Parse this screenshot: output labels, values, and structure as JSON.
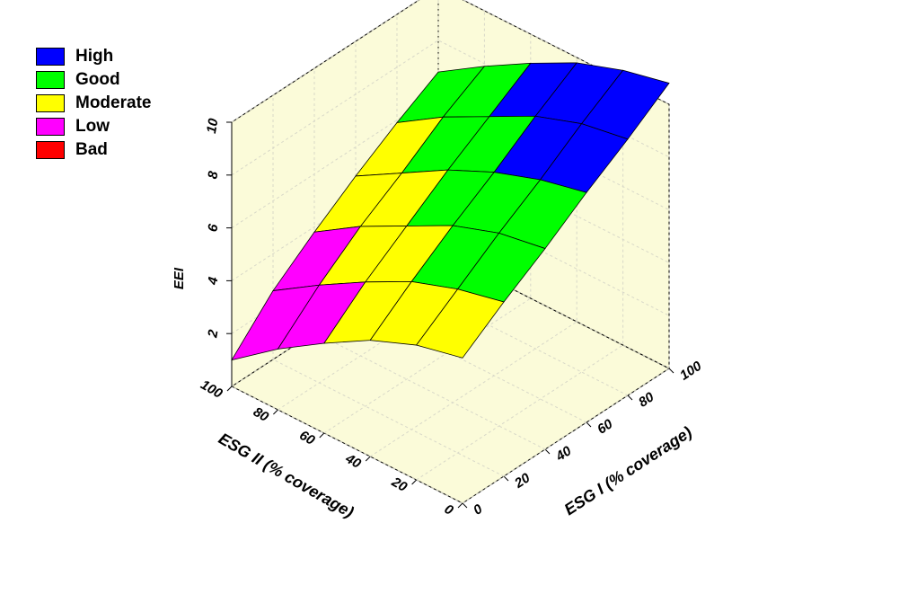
{
  "chart_data": {
    "type": "surface",
    "x_label": "ESG I (% coverage)",
    "y_label": "ESG II (% coverage)",
    "z_label": "EEI",
    "x": [
      0,
      20,
      40,
      60,
      80,
      100
    ],
    "y": [
      0,
      20,
      40,
      60,
      80,
      100
    ],
    "z": [
      [
        5.5,
        6.6,
        7.6,
        8.7,
        9.7,
        10.8
      ],
      [
        5.1,
        6.2,
        7.3,
        8.3,
        9.4,
        10.4
      ],
      [
        4.4,
        5.6,
        6.7,
        7.7,
        8.8,
        9.8
      ],
      [
        3.4,
        4.7,
        5.8,
        6.9,
        7.9,
        8.9
      ],
      [
        2.3,
        3.7,
        4.9,
        5.9,
        7.0,
        7.9
      ],
      [
        1.0,
        2.6,
        3.8,
        4.9,
        5.9,
        6.8
      ]
    ],
    "xlim": [
      0,
      100
    ],
    "xticks": [
      0,
      20,
      40,
      60,
      80,
      100
    ],
    "ylim": [
      0,
      100
    ],
    "yticks": [
      0,
      20,
      40,
      60,
      80,
      100
    ],
    "zlim": [
      0,
      10
    ],
    "zticks": [
      2,
      4,
      6,
      8,
      10
    ],
    "grid": true,
    "legend_position": "upper left",
    "levels": [
      {
        "name": "High",
        "color": "#0000ff",
        "min": 8
      },
      {
        "name": "Good",
        "color": "#00ff00",
        "min": 6
      },
      {
        "name": "Moderate",
        "color": "#ffff00",
        "min": 4
      },
      {
        "name": "Low",
        "color": "#ff00ff",
        "min": 2
      },
      {
        "name": "Bad",
        "color": "#ff0000",
        "min": 0
      }
    ]
  }
}
